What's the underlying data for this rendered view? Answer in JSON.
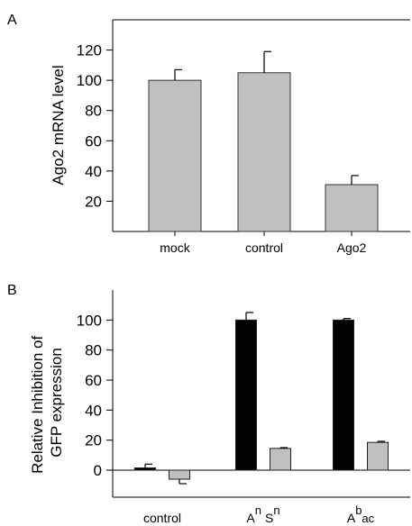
{
  "chart_data": [
    {
      "type": "bar",
      "panel": "A",
      "categories": [
        "mock",
        "control",
        "Ago2"
      ],
      "values": [
        100,
        105,
        31
      ],
      "errors": [
        7,
        14,
        6
      ],
      "ylabel": "Ago2 mRNA level",
      "xlabel": "",
      "ylim": [
        0,
        140
      ],
      "yticks": [
        20,
        40,
        60,
        80,
        100,
        120
      ],
      "grid": false,
      "colors": [
        "#c0c0c0"
      ]
    },
    {
      "type": "bar",
      "panel": "B",
      "categories": [
        {
          "base": "control",
          "sup1": "",
          "mid": "",
          "sup2": "",
          "sub": ""
        },
        {
          "base": "A",
          "sup1": "n",
          "mid": "S",
          "sup2": "n",
          "sub": ""
        },
        {
          "base": "A",
          "sup1": "b",
          "mid": "",
          "sup2": "",
          "sub": "ac"
        }
      ],
      "series": [
        {
          "color": "#000000",
          "values": [
            1.5,
            100,
            100
          ],
          "errors": [
            2.5,
            5,
            1
          ]
        },
        {
          "color": "#c0c0c0",
          "values": [
            -6,
            14.5,
            18.5
          ],
          "errors": [
            3,
            0.5,
            0.7
          ]
        }
      ],
      "ylabel_lines": [
        "Relative Inhibition of",
        "GFP expression"
      ],
      "xlabel": "",
      "ylim": [
        -18,
        120
      ],
      "yticks": [
        0,
        20,
        40,
        60,
        80,
        100
      ],
      "grid": false
    }
  ]
}
